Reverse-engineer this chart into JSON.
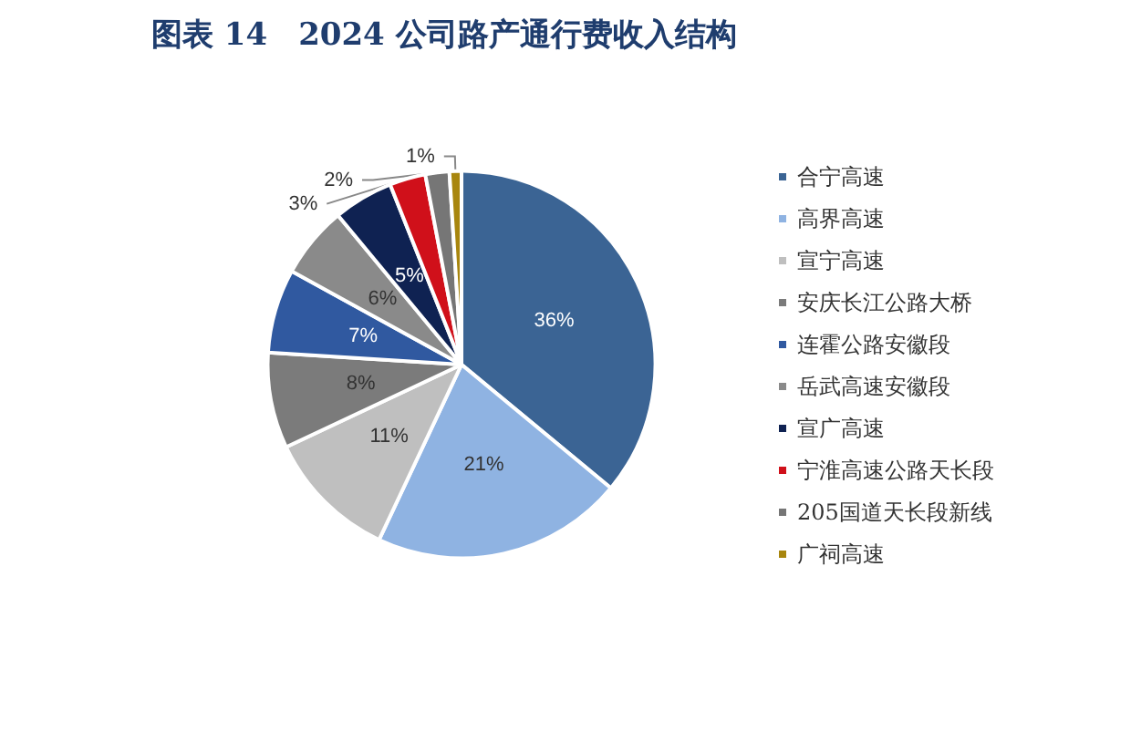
{
  "chart_data": {
    "type": "pie",
    "title": "图表 14　2024 公司路产通行费收入结构",
    "categories": [
      "合宁高速",
      "高界高速",
      "宣宁高速",
      "安庆长江公路大桥",
      "连霍公路安徽段",
      "岳武高速安徽段",
      "宣广高速",
      "宁淮高速公路天长段",
      "205国道天长段新线",
      "广祠高速"
    ],
    "values": [
      36,
      21,
      11,
      8,
      7,
      6,
      5,
      3,
      2,
      1
    ],
    "colors": [
      "#3b6494",
      "#8fb3e2",
      "#bfbfbf",
      "#7b7b7b",
      "#3059a0",
      "#8a8a8a",
      "#0f2252",
      "#d0101a",
      "#767676",
      "#a8860e"
    ],
    "value_labels": [
      "36%",
      "21%",
      "11%",
      "8%",
      "7%",
      "6%",
      "5%",
      "3%",
      "2%",
      "1%"
    ],
    "legend": "right"
  }
}
